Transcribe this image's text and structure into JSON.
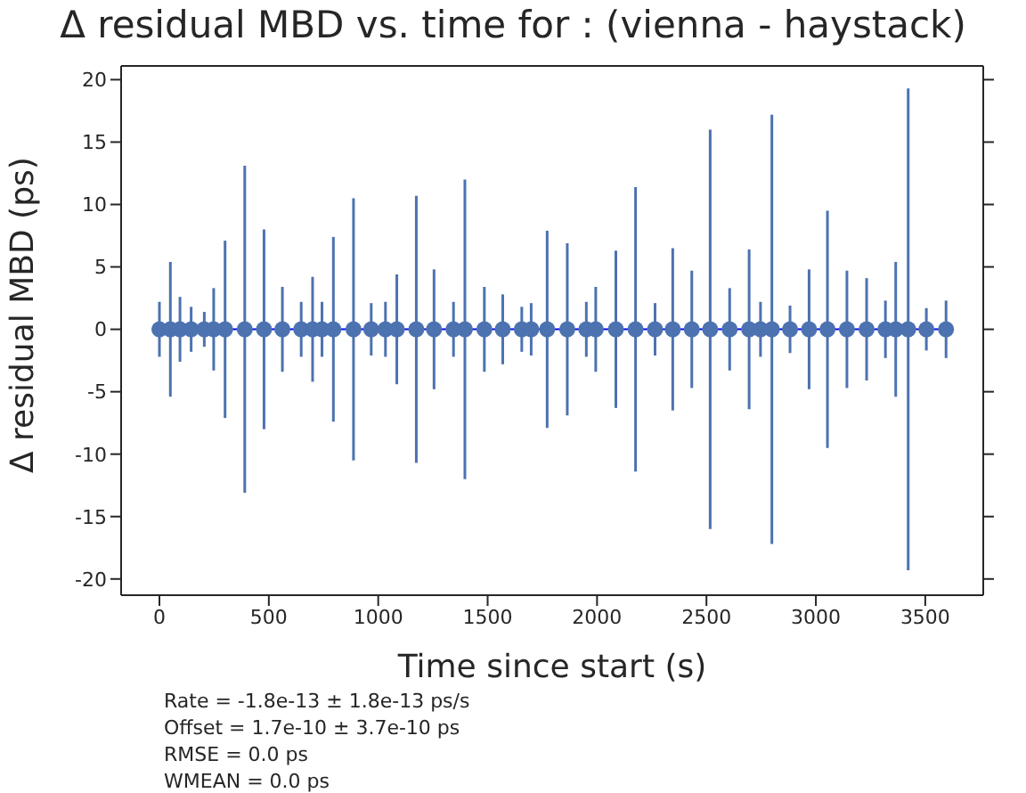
{
  "chart_data": {
    "type": "scatter",
    "title": "Δ residual MBD vs. time for : (vienna - haystack)",
    "xlabel": "Time since start (s)",
    "ylabel": "Δ residual MBD (ps)",
    "xlim": [
      -175,
      3765
    ],
    "xticks": [
      0,
      500,
      1000,
      1500,
      2000,
      2500,
      3000,
      3500
    ],
    "ylim": [
      -21.3,
      21.1
    ],
    "yticks": [
      -20,
      -15,
      -10,
      -5,
      0,
      5,
      10,
      15,
      20
    ],
    "marker": "circle",
    "series": [
      {
        "color": "#4c72b0",
        "x": [
          0,
          50,
          94,
          145,
          205,
          248,
          300,
          390,
          478,
          562,
          648,
          700,
          743,
          795,
          887,
          968,
          1033,
          1085,
          1174,
          1255,
          1344,
          1396,
          1485,
          1569,
          1656,
          1699,
          1772,
          1864,
          1951,
          1994,
          2086,
          2176,
          2265,
          2346,
          2433,
          2517,
          2606,
          2695,
          2747,
          2799,
          2882,
          2969,
          3053,
          3142,
          3232,
          3318,
          3365,
          3422,
          3505,
          3595
        ],
        "values": [
          0,
          0,
          0,
          0,
          0,
          0,
          0,
          0,
          0,
          0,
          0,
          0,
          0,
          0,
          0,
          0,
          0,
          0,
          0,
          0,
          0,
          0,
          0,
          0,
          0,
          0,
          0,
          0,
          0,
          0,
          0,
          0,
          0,
          0,
          0,
          0,
          0,
          0,
          0,
          0,
          0,
          0,
          0,
          0,
          0,
          0,
          0,
          0,
          0,
          0
        ],
        "errors": [
          2.2,
          5.4,
          2.6,
          1.8,
          1.4,
          3.3,
          7.1,
          13.1,
          8.0,
          3.4,
          2.2,
          4.2,
          2.2,
          7.4,
          10.5,
          2.1,
          2.2,
          4.4,
          10.7,
          4.8,
          2.2,
          12.0,
          3.4,
          2.8,
          1.8,
          2.1,
          7.9,
          6.9,
          2.2,
          3.4,
          6.3,
          11.4,
          2.1,
          6.5,
          4.7,
          16.0,
          3.3,
          6.4,
          2.2,
          17.2,
          1.9,
          4.8,
          9.5,
          4.7,
          4.1,
          2.3,
          5.4,
          19.3,
          1.7,
          2.3
        ]
      },
      {
        "type": "line",
        "marker": "none",
        "color": "#0000ff",
        "x": [
          0,
          3595
        ],
        "values": [
          0,
          0
        ]
      }
    ],
    "annotations": [
      "Rate = -1.8e-13 ± 1.8e-13 ps/s",
      "Offset = 1.7e-10 ± 3.7e-10 ps",
      "RMSE = 0.0 ps",
      "WMEAN = 0.0 ps"
    ]
  }
}
